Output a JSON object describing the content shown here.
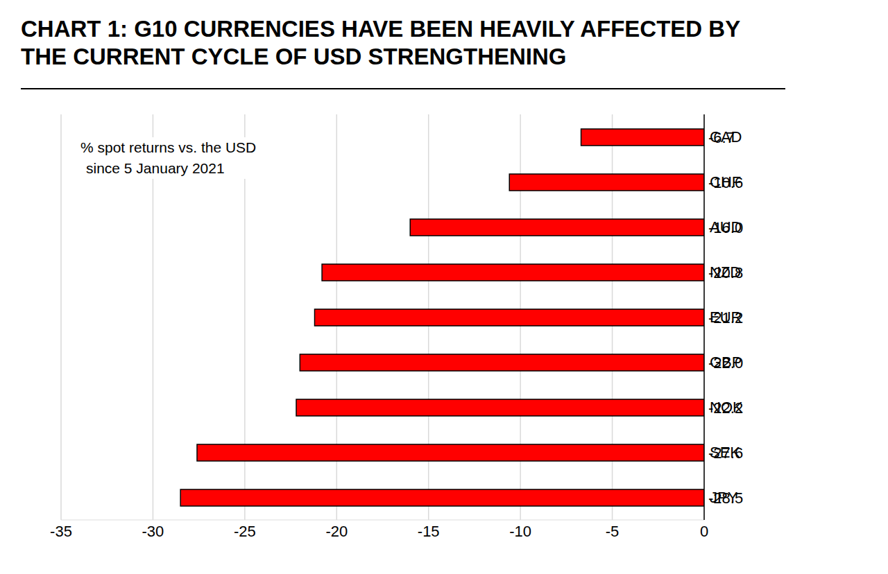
{
  "chart_data": {
    "type": "bar",
    "orientation": "horizontal",
    "title": "CHART 1: G10 CURRENCIES HAVE BEEN HEAVILY AFFECTED BY THE CURRENT CYCLE OF USD STRENGTHENING",
    "annotation": [
      "% spot returns vs. the USD",
      "since 5 January 2021"
    ],
    "categories": [
      "CAD",
      "CHF",
      "AUD",
      "NZD",
      "EUR",
      "GBP",
      "NOK",
      "SEK",
      "JPY"
    ],
    "values": [
      -6.7,
      -10.6,
      -16.0,
      -20.8,
      -21.2,
      -22.0,
      -22.2,
      -27.6,
      -28.5
    ],
    "value_labels": [
      "-6.7",
      "-10.6",
      "-16.0",
      "-20.8",
      "-21.2",
      "-22.0",
      "-22.2",
      "-27.6",
      "-28.5"
    ],
    "color": "#ff0000",
    "xlim": [
      -35,
      0
    ],
    "xticks": [
      -35,
      -30,
      -25,
      -20,
      -15,
      -10,
      -5,
      0
    ],
    "grid": true,
    "data_labels": true
  }
}
